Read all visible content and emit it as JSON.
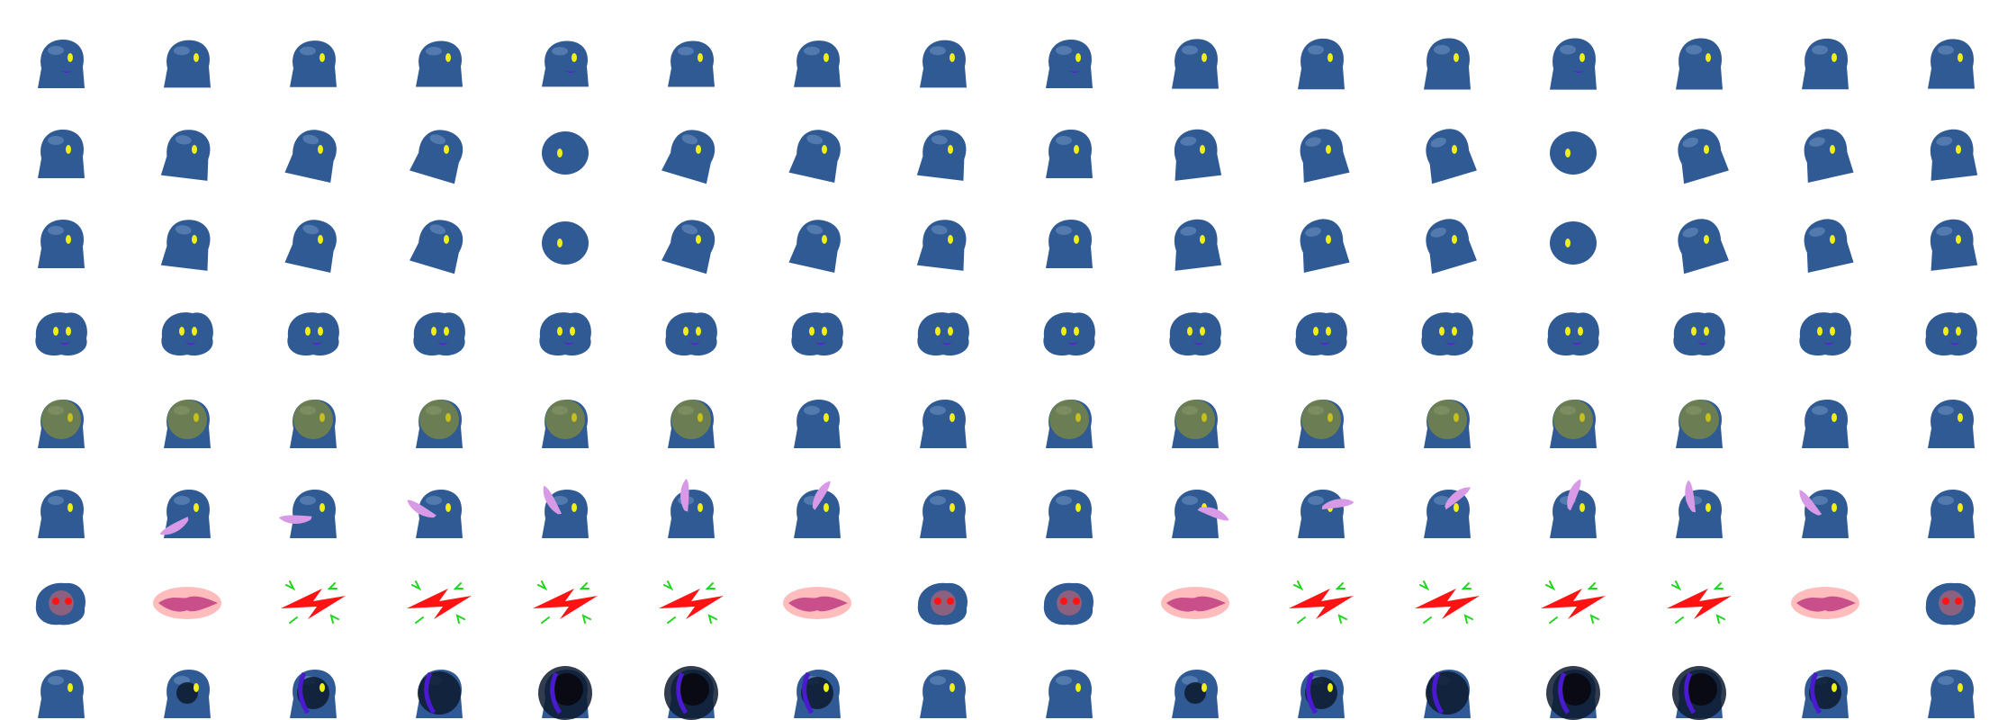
{
  "sheet": {
    "rows": [
      {
        "state": "idle",
        "frames": 16
      },
      {
        "state": "walk-side",
        "frames": 16
      },
      {
        "state": "walk-side-2",
        "frames": 16
      },
      {
        "state": "float",
        "frames": 16
      },
      {
        "state": "glow",
        "frames": 16
      },
      {
        "state": "lick",
        "frames": 16
      },
      {
        "state": "hit",
        "frames": 16
      },
      {
        "state": "dark",
        "frames": 16
      }
    ],
    "columns": 16,
    "colors": {
      "body": "#2f5a93",
      "eye": "#f2ef16",
      "mouth": "#5a1fd0",
      "tongue": "#d89ae6",
      "hit": "#ff1212",
      "spark": "#22d61f"
    }
  }
}
